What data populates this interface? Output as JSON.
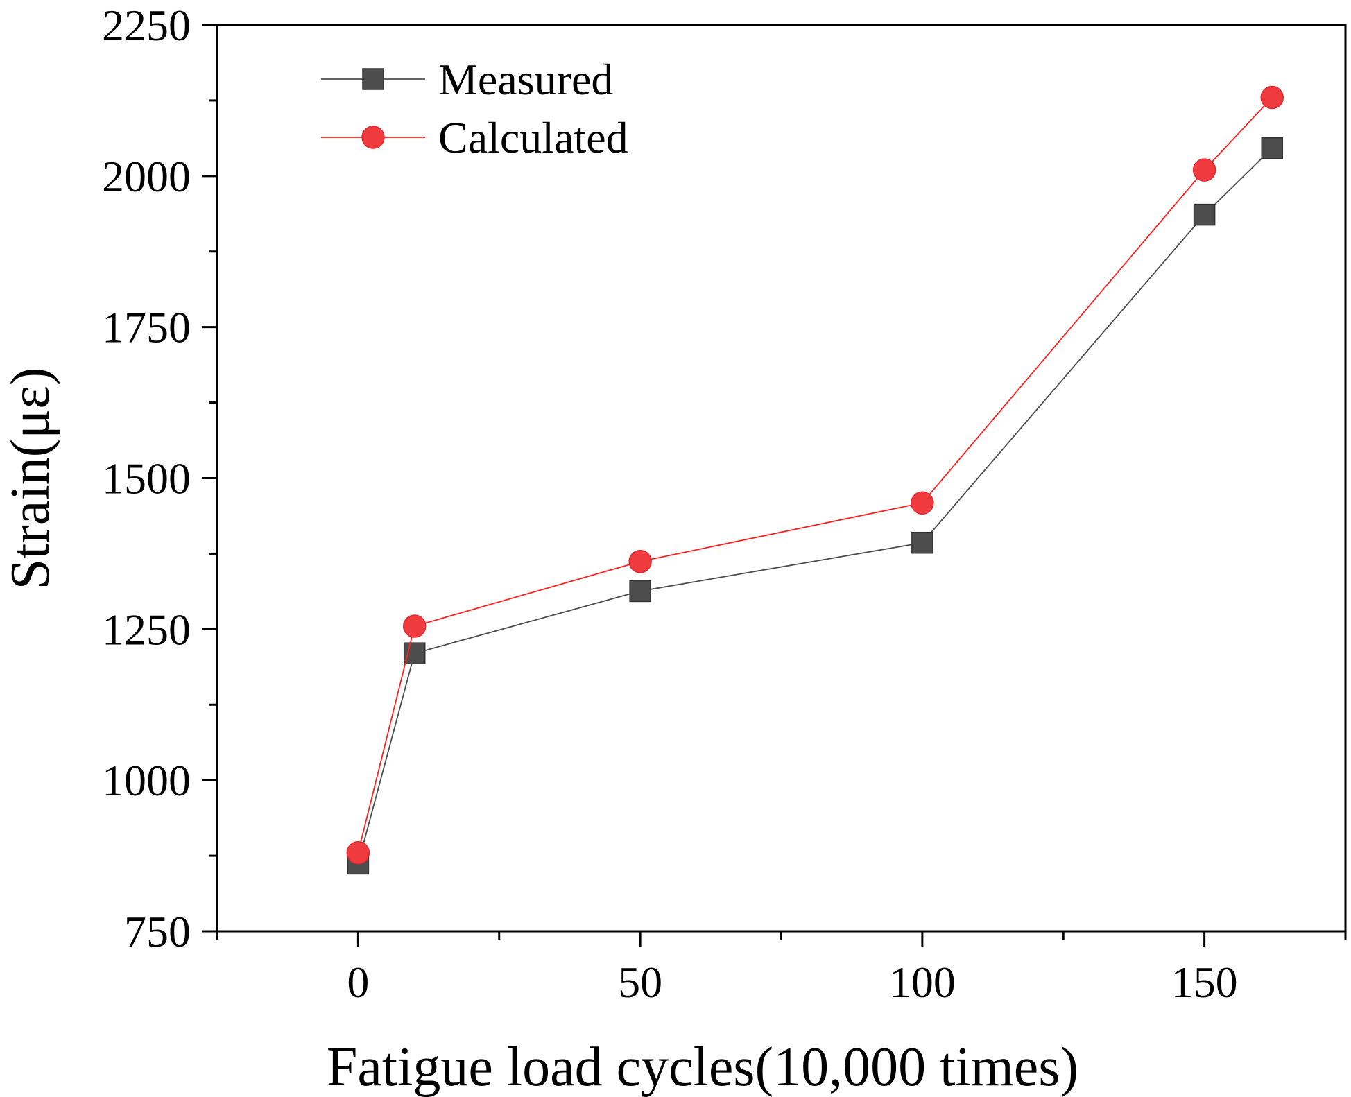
{
  "chart_data": {
    "type": "line",
    "title": "",
    "xlabel": "Fatigue load cycles(10,000 times)",
    "ylabel": "Strain(με)",
    "xlim": [
      -25,
      175
    ],
    "ylim": [
      750,
      2250
    ],
    "xticks": [
      0,
      50,
      100,
      150
    ],
    "yticks": [
      750,
      1000,
      1250,
      1500,
      1750,
      2000,
      2250
    ],
    "x_tick_labels": [
      "0",
      "50",
      "100",
      "150"
    ],
    "y_tick_labels": [
      "750",
      "1000",
      "1250",
      "1500",
      "1750",
      "2000",
      "2250"
    ],
    "legend_position": "top-left",
    "series": [
      {
        "name": "Measured",
        "marker": "square",
        "color": "#4d4d4d",
        "line_color": "#4d4d4d",
        "x": [
          0,
          10,
          50,
          100,
          150,
          162
        ],
        "values": [
          862,
          1210,
          1313,
          1393,
          1936,
          2046
        ]
      },
      {
        "name": "Calculated",
        "marker": "circle",
        "color": "#ef3a3e",
        "line_color": "#ff2020",
        "x": [
          0,
          10,
          50,
          100,
          150,
          162
        ],
        "values": [
          880,
          1255,
          1362,
          1459,
          2010,
          2130
        ]
      }
    ]
  }
}
